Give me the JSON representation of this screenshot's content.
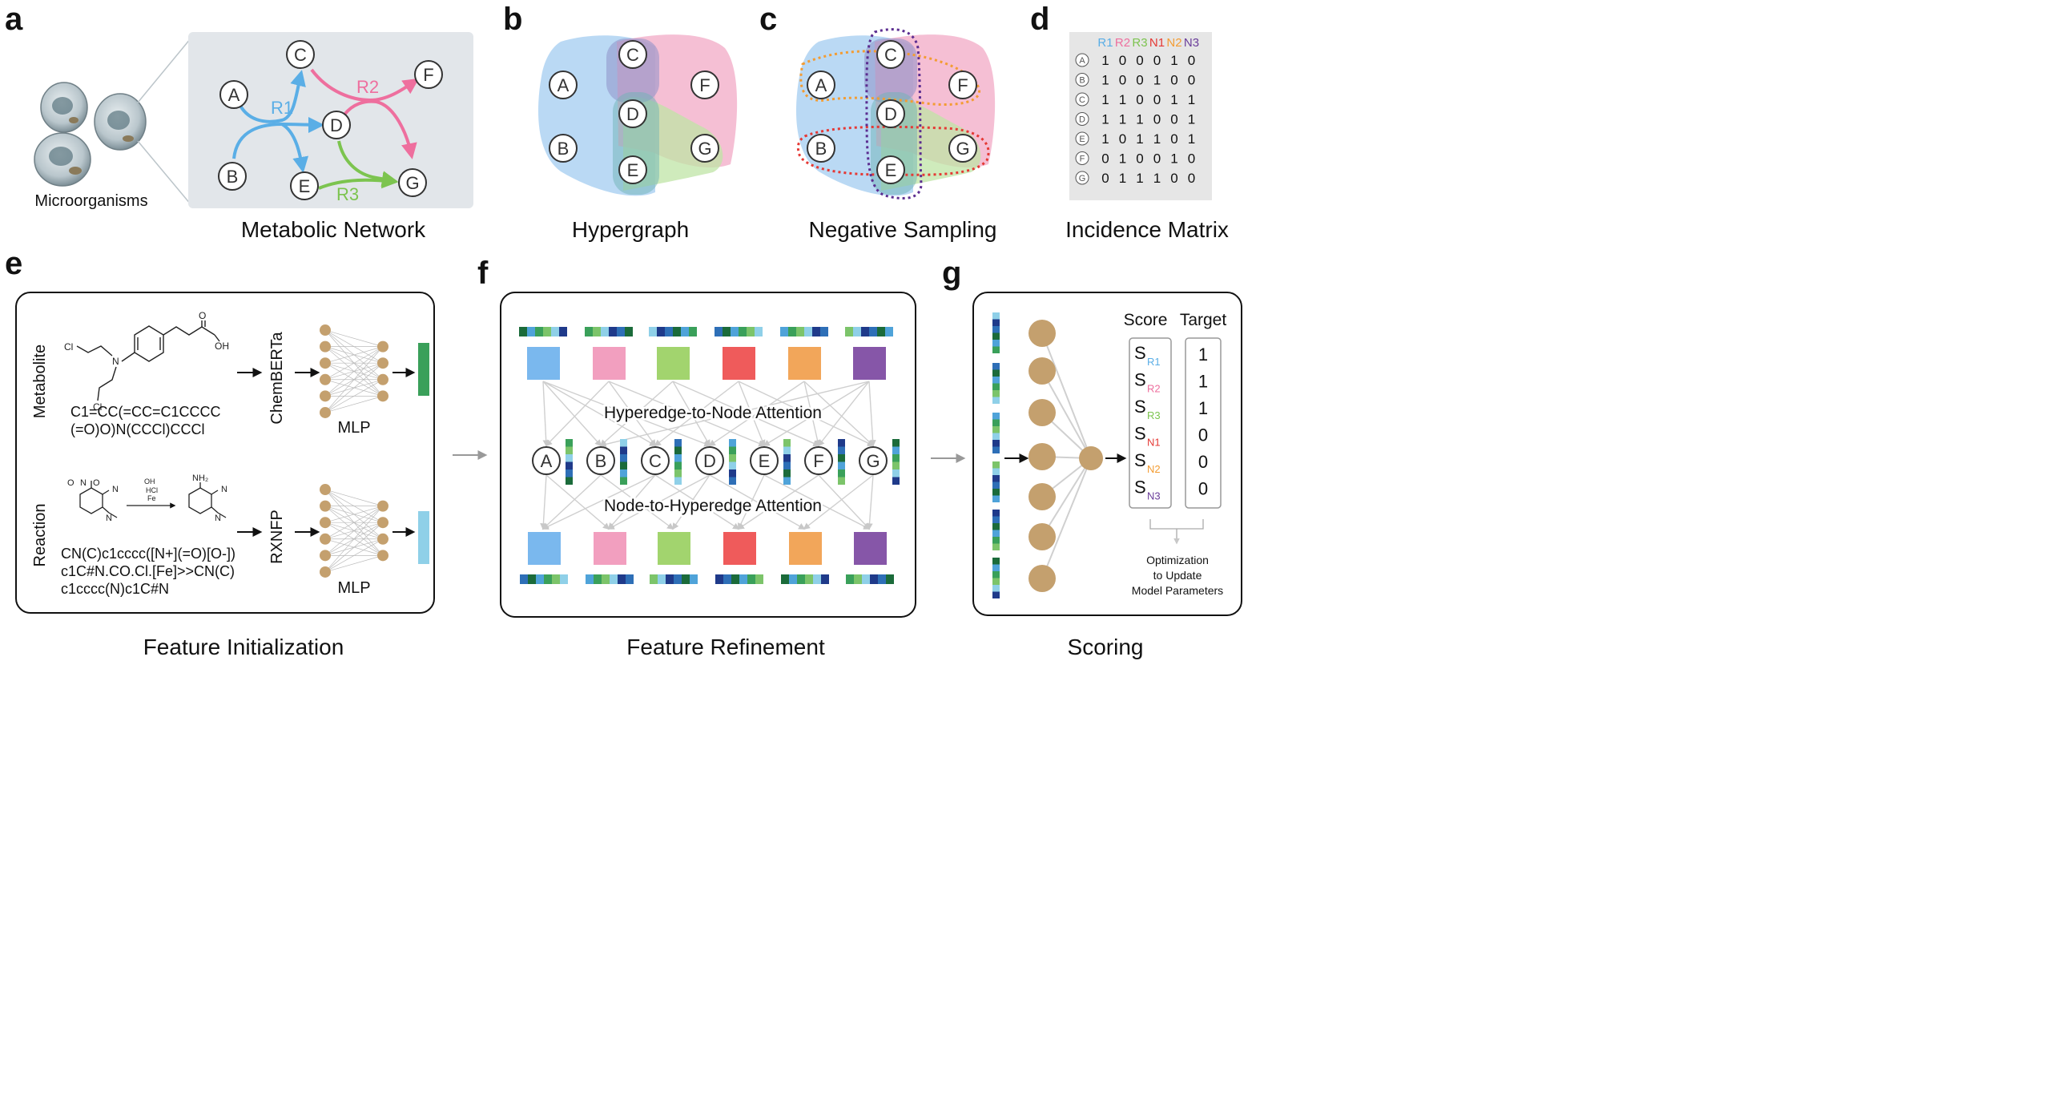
{
  "panels": {
    "a": {
      "letter": "a",
      "caption": "Metabolic Network",
      "organism_label": "Microorganisms",
      "nodes": [
        "A",
        "B",
        "C",
        "D",
        "E",
        "F",
        "G"
      ],
      "reactions": [
        {
          "label": "R1",
          "color": "#5aaee6"
        },
        {
          "label": "R2",
          "color": "#ee6f9e"
        },
        {
          "label": "R3",
          "color": "#7cc44f"
        }
      ]
    },
    "b": {
      "letter": "b",
      "caption": "Hypergraph",
      "nodes": [
        "A",
        "B",
        "C",
        "D",
        "E",
        "F",
        "G"
      ]
    },
    "c": {
      "letter": "c",
      "caption": "Negative Sampling",
      "nodes": [
        "A",
        "B",
        "C",
        "D",
        "E",
        "F",
        "G"
      ]
    },
    "d": {
      "letter": "d",
      "caption": "Incidence Matrix",
      "columns": [
        {
          "label": "R1",
          "color": "#5aaee6"
        },
        {
          "label": "R2",
          "color": "#ee6f9e"
        },
        {
          "label": "R3",
          "color": "#7cc44f"
        },
        {
          "label": "N1",
          "color": "#e53935"
        },
        {
          "label": "N2",
          "color": "#f39c33"
        },
        {
          "label": "N3",
          "color": "#6a3d9a"
        }
      ],
      "rows": [
        {
          "node": "A",
          "values": [
            "1",
            "0",
            "0",
            "0",
            "1",
            "0"
          ]
        },
        {
          "node": "B",
          "values": [
            "1",
            "0",
            "0",
            "1",
            "0",
            "0"
          ]
        },
        {
          "node": "C",
          "values": [
            "1",
            "1",
            "0",
            "0",
            "1",
            "1"
          ]
        },
        {
          "node": "D",
          "values": [
            "1",
            "1",
            "1",
            "0",
            "0",
            "1"
          ]
        },
        {
          "node": "E",
          "values": [
            "1",
            "0",
            "1",
            "1",
            "0",
            "1"
          ]
        },
        {
          "node": "F",
          "values": [
            "0",
            "1",
            "0",
            "0",
            "1",
            "0"
          ]
        },
        {
          "node": "G",
          "values": [
            "0",
            "1",
            "1",
            "1",
            "0",
            "0"
          ]
        }
      ]
    },
    "e": {
      "letter": "e",
      "caption": "Feature Initialization",
      "metabolite": {
        "side_label": "Metabolite",
        "substituents": [
          "Cl",
          "Cl",
          "N",
          "OH",
          "O"
        ],
        "smiles": [
          "C1=CC(=CC=C1CCCC",
          "(=O)O)N(CCCl)CCCl"
        ],
        "encoder": "ChemBERTa",
        "mlp": "MLP"
      },
      "reaction": {
        "side_label": "Reaction",
        "reactant_groups": [
          "O",
          "N",
          "O",
          "N",
          "N"
        ],
        "product_groups": [
          "NH₂",
          "N",
          "N"
        ],
        "reagents": [
          "OH",
          "HCl",
          "Fe"
        ],
        "smiles": [
          "CN(C)c1cccc([N+](=O)[O-])",
          "c1C#N.CO.Cl.[Fe]>>CN(C)",
          "c1cccc(N)c1C#N"
        ],
        "encoder": "RXNFP",
        "mlp": "MLP"
      }
    },
    "f": {
      "letter": "f",
      "caption": "Feature Refinement",
      "attention_top": "Hyperedge-to-Node Attention",
      "attention_bottom": "Node-to-Hyperedge Attention",
      "hyperedge_colors": [
        "#7ab8ee",
        "#f29fbf",
        "#a2d46e",
        "#ef5b5b",
        "#f2a65a",
        "#8656a8"
      ],
      "nodes": [
        "A",
        "B",
        "C",
        "D",
        "E",
        "F",
        "G"
      ]
    },
    "g": {
      "letter": "g",
      "caption": "Scoring",
      "score_header": "Score",
      "target_header": "Target",
      "scores": [
        {
          "symbol": "S",
          "sub": "R1",
          "color": "#5aaee6",
          "target": "1"
        },
        {
          "symbol": "S",
          "sub": "R2",
          "color": "#ee6f9e",
          "target": "1"
        },
        {
          "symbol": "S",
          "sub": "R3",
          "color": "#7cc44f",
          "target": "1"
        },
        {
          "symbol": "S",
          "sub": "N1",
          "color": "#e53935",
          "target": "0"
        },
        {
          "symbol": "S",
          "sub": "N2",
          "color": "#f39c33",
          "target": "0"
        },
        {
          "symbol": "S",
          "sub": "N3",
          "color": "#6a3d9a",
          "target": "0"
        }
      ],
      "optimization": [
        "Optimization",
        "to Update",
        "Model Parameters"
      ]
    }
  }
}
